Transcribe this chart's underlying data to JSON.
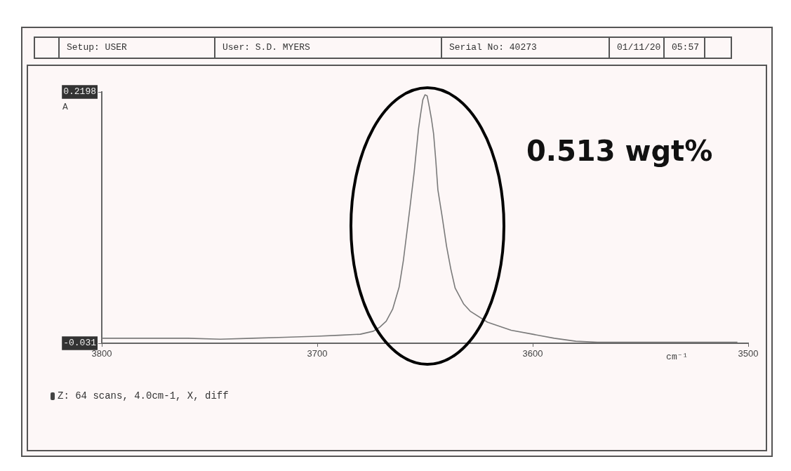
{
  "chart_data": {
    "type": "line",
    "xlabel": "cm⁻¹",
    "ylabel": "A",
    "annotations": [
      "Setup: USER",
      "User: S.D. MYERS",
      "Serial No: 40273",
      "01/11/20",
      "05:57",
      "0.513 wgt%",
      "Z: 64 scans, 4.0cm-1, X, diff"
    ],
    "xlim": [
      3800,
      3500
    ],
    "xticks": [
      3800,
      3700,
      3600,
      3500
    ],
    "ylim": [
      -0.031,
      0.2198
    ],
    "yticks": [
      -0.031,
      0.2198
    ],
    "grid": false,
    "legend": false,
    "series": [
      {
        "color": "#7a7a7a",
        "x": [
          3800,
          3780,
          3760,
          3745,
          3730,
          3715,
          3700,
          3690,
          3680,
          3674,
          3671,
          3668,
          3665,
          3662,
          3660,
          3657,
          3655,
          3653,
          3652,
          3651,
          3650,
          3649,
          3648,
          3647,
          3646,
          3645,
          3644,
          3642,
          3640,
          3638,
          3636,
          3632,
          3629,
          3621,
          3610,
          3600,
          3590,
          3580,
          3570,
          3550,
          3530,
          3505
        ],
        "values": [
          -0.026,
          -0.026,
          -0.026,
          -0.027,
          -0.026,
          -0.025,
          -0.024,
          -0.023,
          -0.022,
          -0.019,
          -0.015,
          -0.009,
          0.003,
          0.025,
          0.052,
          0.104,
          0.14,
          0.183,
          0.198,
          0.212,
          0.217,
          0.216,
          0.205,
          0.193,
          0.178,
          0.152,
          0.122,
          0.095,
          0.066,
          0.043,
          0.024,
          0.008,
          0.001,
          -0.01,
          -0.018,
          -0.022,
          -0.026,
          -0.029,
          -0.03,
          -0.03,
          -0.03,
          -0.03
        ]
      }
    ]
  }
}
